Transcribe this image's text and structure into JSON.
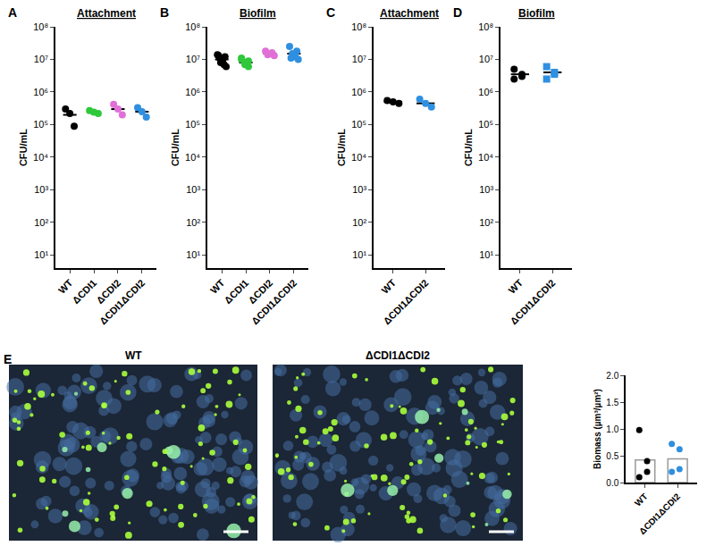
{
  "chart_data": [
    {
      "panel": "A",
      "type": "scatter",
      "title": "Attachment",
      "y_label": "CFU/mL",
      "log": "y",
      "ylim": [
        4,
        100000000
      ],
      "yticks": [
        {
          "value": 10,
          "label": "10¹"
        },
        {
          "value": 100,
          "label": "10²"
        },
        {
          "value": 1000,
          "label": "10³"
        },
        {
          "value": 10000,
          "label": "10⁴"
        },
        {
          "value": 100000,
          "label": "10⁵"
        },
        {
          "value": 1000000,
          "label": "10⁶"
        },
        {
          "value": 10000000,
          "label": "10⁷"
        },
        {
          "value": 100000000,
          "label": "10⁸"
        }
      ],
      "series": [
        {
          "name": "WT",
          "color": "#000000",
          "marker": "circle",
          "values": [
            300000,
            220000,
            90000
          ],
          "mean": 200000
        },
        {
          "name": "ΔCDI1",
          "color": "#2fc83a",
          "marker": "circle",
          "values": [
            270000,
            240000,
            220000
          ],
          "mean": 240000
        },
        {
          "name": "ΔCDI2",
          "color": "#e070d8",
          "marker": "circle",
          "values": [
            420000,
            300000,
            200000
          ],
          "mean": 300000
        },
        {
          "name": "ΔCDI1ΔCDI2",
          "color": "#2f8fe0",
          "marker": "circle",
          "values": [
            330000,
            250000,
            170000
          ],
          "mean": 250000
        }
      ]
    },
    {
      "panel": "B",
      "type": "scatter",
      "title": "Biofilm",
      "y_label": "CFU/mL",
      "log": "y",
      "ylim": [
        4,
        100000000
      ],
      "yticks": [
        {
          "value": 10,
          "label": "10¹"
        },
        {
          "value": 100,
          "label": "10²"
        },
        {
          "value": 1000,
          "label": "10³"
        },
        {
          "value": 10000,
          "label": "10⁴"
        },
        {
          "value": 100000,
          "label": "10⁵"
        },
        {
          "value": 1000000,
          "label": "10⁶"
        },
        {
          "value": 10000000,
          "label": "10⁷"
        },
        {
          "value": 100000000,
          "label": "10⁸"
        }
      ],
      "series": [
        {
          "name": "WT",
          "color": "#000000",
          "marker": "circle",
          "values": [
            14000000,
            12000000,
            11000000,
            10000000,
            9000000,
            8000000,
            7000000,
            13000000,
            6000000
          ],
          "mean": 10000000
        },
        {
          "name": "ΔCDI1",
          "color": "#2fc83a",
          "marker": "circle",
          "values": [
            11000000,
            9000000,
            8000000,
            7000000,
            6000000,
            10000000
          ],
          "mean": 8000000
        },
        {
          "name": "ΔCDI2",
          "color": "#e070d8",
          "marker": "circle",
          "values": [
            18000000,
            16000000,
            15000000,
            14000000,
            13000000
          ],
          "mean": 15000000
        },
        {
          "name": "ΔCDI1ΔCDI2",
          "color": "#2f8fe0",
          "marker": "circle",
          "values": [
            25000000,
            18000000,
            15000000,
            13000000,
            12000000,
            11000000,
            10000000
          ],
          "mean": 15000000
        }
      ]
    },
    {
      "panel": "C",
      "type": "scatter",
      "title": "Attachment",
      "y_label": "CFU/mL",
      "log": "y",
      "ylim": [
        4,
        100000000
      ],
      "yticks": [
        {
          "value": 10,
          "label": "10¹"
        },
        {
          "value": 100,
          "label": "10²"
        },
        {
          "value": 1000,
          "label": "10³"
        },
        {
          "value": 10000,
          "label": "10⁴"
        },
        {
          "value": 100000,
          "label": "10⁵"
        },
        {
          "value": 1000000,
          "label": "10⁶"
        },
        {
          "value": 10000000,
          "label": "10⁷"
        },
        {
          "value": 100000000,
          "label": "10⁸"
        }
      ],
      "series": [
        {
          "name": "WT",
          "color": "#000000",
          "marker": "circle",
          "values": [
            550000,
            500000,
            450000
          ],
          "mean": 500000
        },
        {
          "name": "ΔCDI1ΔCDI2",
          "color": "#2f8fe0",
          "marker": "circle",
          "values": [
            600000,
            450000,
            350000
          ],
          "mean": 450000
        }
      ]
    },
    {
      "panel": "D",
      "type": "scatter",
      "title": "Biofilm",
      "y_label": "CFU/mL",
      "log": "y",
      "ylim": [
        4,
        100000000
      ],
      "yticks": [
        {
          "value": 10,
          "label": "10¹"
        },
        {
          "value": 100,
          "label": "10²"
        },
        {
          "value": 1000,
          "label": "10³"
        },
        {
          "value": 10000,
          "label": "10⁴"
        },
        {
          "value": 100000,
          "label": "10⁵"
        },
        {
          "value": 1000000,
          "label": "10⁶"
        },
        {
          "value": 10000000,
          "label": "10⁷"
        },
        {
          "value": 100000000,
          "label": "10⁸"
        }
      ],
      "series": [
        {
          "name": "WT",
          "color": "#000000",
          "marker": "circle",
          "values": [
            5000000,
            3500000,
            3000000,
            2500000
          ],
          "mean": 3500000
        },
        {
          "name": "ΔCDI1ΔCDI2",
          "color": "#2f8fe0",
          "marker": "square",
          "values": [
            6000000,
            4000000,
            3500000,
            2500000
          ],
          "mean": 4000000
        }
      ]
    },
    {
      "panel": "E",
      "type": "bar",
      "y_label": "Biomass (µm³/µm²)",
      "image_labels": [
        "WT",
        "ΔCDI1ΔCDI2"
      ],
      "ylim": [
        0,
        2.0
      ],
      "yticks": [
        {
          "value": 0,
          "label": "0.0"
        },
        0.5,
        {
          "value": 1,
          "label": "1.0"
        },
        1.5,
        {
          "value": 2,
          "label": "2.0"
        }
      ],
      "series": [
        {
          "name": "WT",
          "color": "#000000",
          "marker": "circle",
          "values": [
            0.98,
            0.4,
            0.2,
            0.1
          ],
          "mean": 0.42
        },
        {
          "name": "ΔCDI1ΔCDI2",
          "color": "#2f8fe0",
          "marker": "circle",
          "values": [
            0.72,
            0.62,
            0.25,
            0.2
          ],
          "mean": 0.44
        }
      ]
    }
  ]
}
